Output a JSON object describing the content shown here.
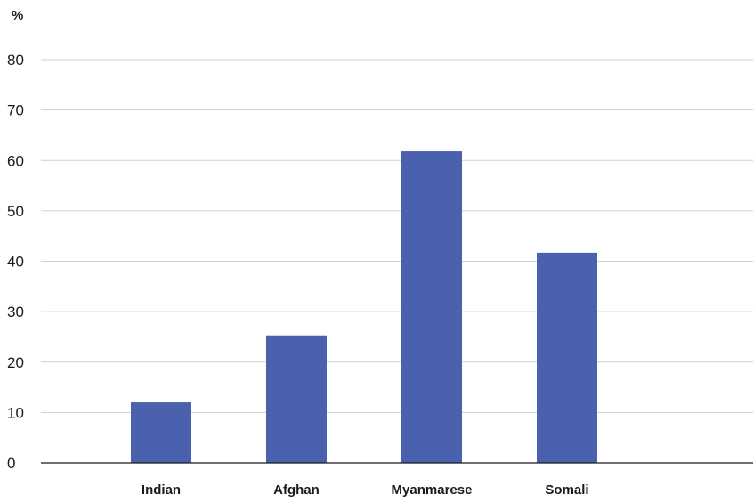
{
  "chart_data": {
    "type": "bar",
    "categories": [
      "Indian",
      "Afghan",
      "Myanmarese",
      "Somali"
    ],
    "series": [
      {
        "values": [
          12,
          25.3,
          61.8,
          41.7
        ],
        "color": "#4a62ad"
      }
    ],
    "ylabel": "%",
    "ylim": [
      0,
      80
    ],
    "yticks": [
      0,
      10,
      20,
      30,
      40,
      50,
      60,
      70,
      80
    ],
    "grid": true,
    "legend": "none"
  }
}
